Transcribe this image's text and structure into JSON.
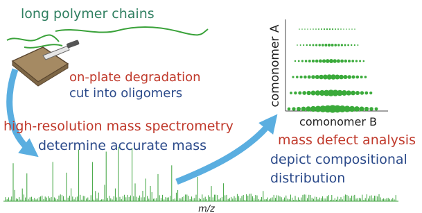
{
  "labels": {
    "top": "long polymer chains",
    "degradation": "on-plate degradation",
    "oligomers": "cut into oligomers",
    "ms": "high-resolution mass spectrometry",
    "accurate": "determine accurate mass",
    "defect": "mass defect analysis",
    "depict": "depict compositional",
    "distribution": "distribution"
  },
  "plot": {
    "y_axis": "comonomer A",
    "x_axis": "comonomer B"
  },
  "spectrum": {
    "x_axis": "m/z"
  }
}
